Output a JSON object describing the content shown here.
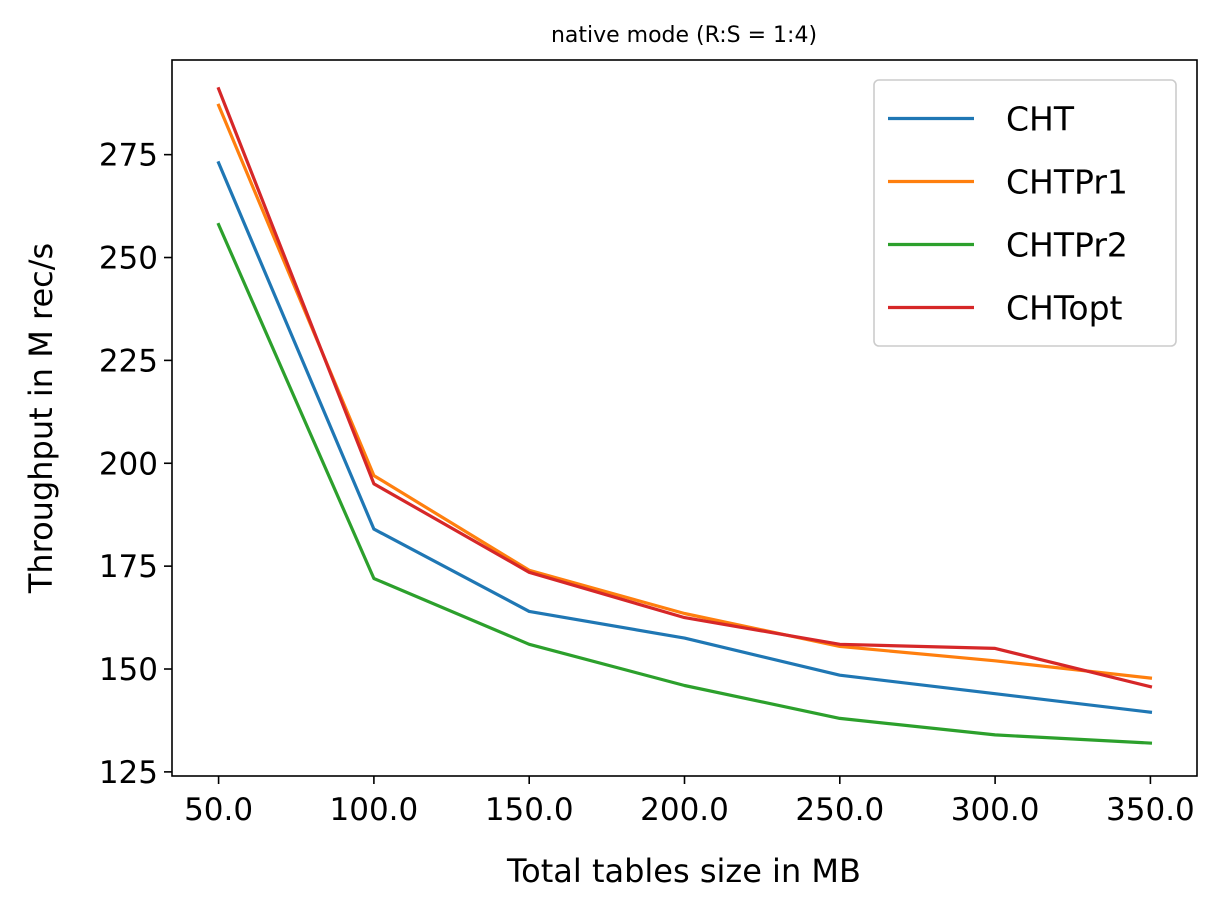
{
  "chart_data": {
    "type": "line",
    "title": "native mode (R:S = 1:4)",
    "xlabel": "Total tables size in MB",
    "ylabel": "Throughput in M rec/s",
    "x": [
      50,
      100,
      150,
      200,
      250,
      300,
      350
    ],
    "x_tick_labels": [
      "50.0",
      "100.0",
      "150.0",
      "200.0",
      "250.0",
      "300.0",
      "350.0"
    ],
    "y_ticks": [
      125,
      150,
      175,
      200,
      225,
      250,
      275
    ],
    "y_tick_labels": [
      "125",
      "150",
      "175",
      "200",
      "225",
      "250",
      "275"
    ],
    "xlim": [
      35,
      365
    ],
    "ylim": [
      124,
      298
    ],
    "grid": false,
    "legend_position": "top-right",
    "series": [
      {
        "name": "CHT",
        "color": "#1f77b4",
        "values": [
          273,
          184,
          164,
          157.5,
          148.5,
          144,
          139.5
        ]
      },
      {
        "name": "CHTPr1",
        "color": "#ff7f0e",
        "values": [
          287,
          197,
          174,
          163.5,
          155.5,
          152,
          147.8
        ]
      },
      {
        "name": "CHTPr2",
        "color": "#2ca02c",
        "values": [
          258,
          172,
          156,
          146,
          138,
          134,
          132
        ]
      },
      {
        "name": "CHTopt",
        "color": "#d62728",
        "values": [
          291,
          195,
          173.5,
          162.5,
          156,
          155,
          145.7
        ]
      }
    ]
  }
}
